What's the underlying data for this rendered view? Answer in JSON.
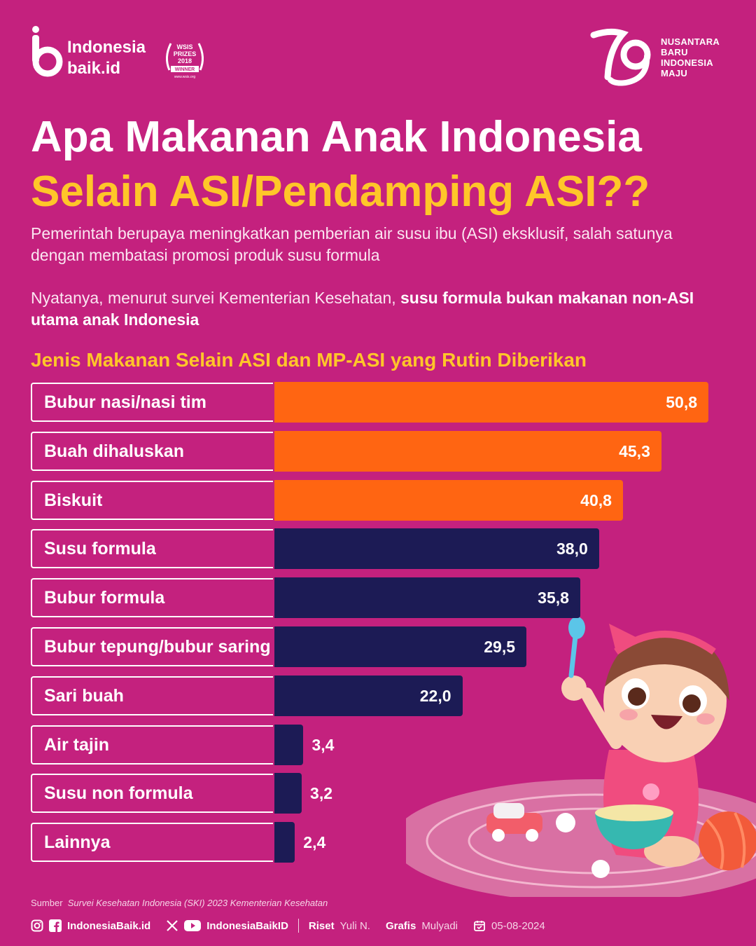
{
  "brand": {
    "line1": "Indonesia",
    "line2": "baik.id"
  },
  "award": {
    "line1": "WSIS",
    "line2": "PRIZES",
    "line3": "2018",
    "line4": "WINNER",
    "line5": "www.wsis.org"
  },
  "partner": {
    "line1": "NUSANTARA",
    "line2": "BARU",
    "line3": "INDONESIA",
    "line4": "MAJU"
  },
  "title_line1": "Apa Makanan Anak Indonesia",
  "title_line2": "Selain ASI/Pendamping ASI??",
  "intro1": "Pemerintah berupaya meningkatkan pemberian air susu ibu (ASI) eksklusif, salah satunya dengan membatasi promosi produk susu formula",
  "intro2_prefix": "Nyatanya, menurut survei Kementerian Kesehatan, ",
  "intro2_bold": "susu formula bukan makanan non-ASI utama anak Indonesia",
  "colors": {
    "background": "#C4217E",
    "highlight": "#FF6512",
    "default": "#1C1B55",
    "title_accent": "#FFC629"
  },
  "chart_data": {
    "type": "bar",
    "orientation": "horizontal",
    "title": "Jenis Makanan Selain ASI dan MP-ASI yang Rutin Diberikan",
    "categories": [
      "Bubur nasi/nasi tim",
      "Buah dihaluskan",
      "Biskuit",
      "Susu formula",
      "Bubur formula",
      "Bubur tepung/bubur saring",
      "Sari buah",
      "Air tajin",
      "Susu non formula",
      "Lainnya"
    ],
    "values": [
      50.8,
      45.3,
      40.8,
      38.0,
      35.8,
      29.5,
      22.0,
      3.4,
      3.2,
      2.4
    ],
    "value_labels": [
      "50,8",
      "45,3",
      "40,8",
      "38,0",
      "35,8",
      "29,5",
      "22,0",
      "3,4",
      "3,2",
      "2,4"
    ],
    "highlighted": [
      true,
      true,
      true,
      false,
      false,
      false,
      false,
      false,
      false,
      false
    ],
    "xlim": [
      0,
      50.8
    ],
    "grid": false,
    "legend": "none"
  },
  "footer": {
    "source_label": "Sumber",
    "source_text": "Survei Kesehatan Indonesia (SKI) 2023 Kementerian Kesehatan",
    "social1": "IndonesiaBaik.id",
    "social2": "IndonesiaBaikID",
    "riset_label": "Riset",
    "riset_name": "Yuli N.",
    "grafis_label": "Grafis",
    "grafis_name": "Mulyadi",
    "date": "05-08-2024"
  }
}
